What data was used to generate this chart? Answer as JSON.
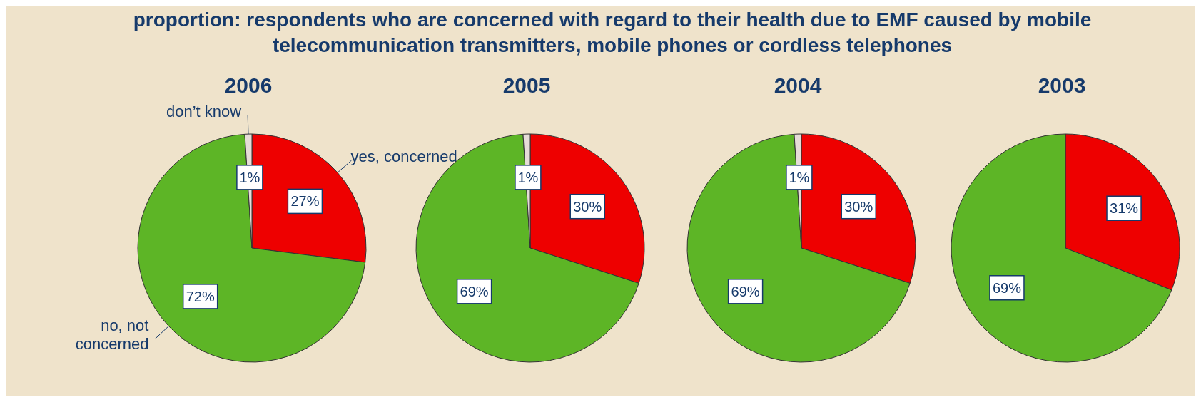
{
  "chart_data": [
    {
      "type": "other",
      "title": "proportion: respondents who are concerned with regard to their health due to EMF caused by mobile telecommunication transmitters, mobile phones or cordless telephones"
    },
    {
      "type": "pie",
      "title": "2006",
      "categories": [
        "yes, concerned",
        "no, not concerned",
        "don’t know"
      ],
      "values": [
        27,
        72,
        1
      ],
      "colors": [
        "#ee0000",
        "#5db526",
        "#e6dcd8"
      ],
      "value_labels": [
        "27%",
        "72%",
        "1%"
      ]
    },
    {
      "type": "pie",
      "title": "2005",
      "categories": [
        null,
        null,
        null
      ],
      "values": [
        30,
        69,
        1
      ],
      "colors": [
        "#ee0000",
        "#5db526",
        "#e6dcd8"
      ],
      "value_labels": [
        "30%",
        "69%",
        "1%"
      ]
    },
    {
      "type": "pie",
      "title": "2004",
      "categories": [
        null,
        null,
        null
      ],
      "values": [
        30,
        69,
        1
      ],
      "colors": [
        "#ee0000",
        "#5db526",
        "#e6dcd8"
      ],
      "value_labels": [
        "30%",
        "69%",
        "1%"
      ]
    },
    {
      "type": "pie",
      "title": "2003",
      "categories": [
        null,
        null
      ],
      "values": [
        31,
        69
      ],
      "colors": [
        "#ee0000",
        "#5db526"
      ],
      "value_labels": [
        "31%",
        "69%"
      ]
    }
  ]
}
